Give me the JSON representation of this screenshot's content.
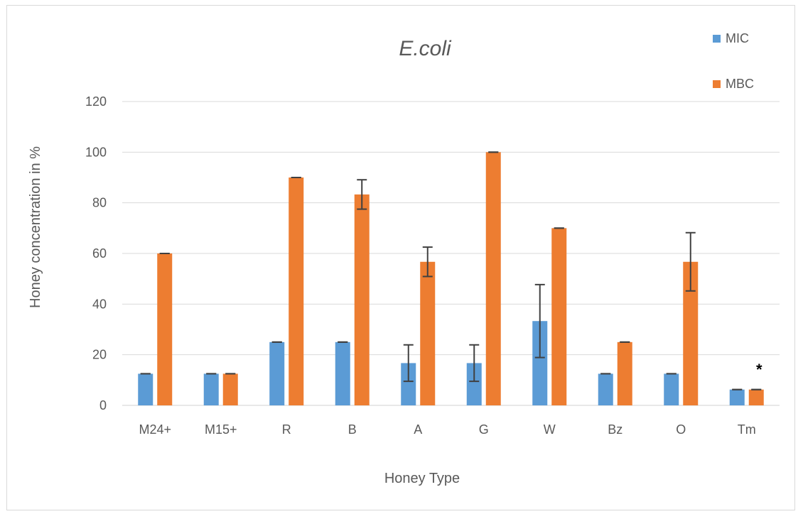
{
  "chart_data": {
    "type": "bar",
    "title": "E.coli",
    "xlabel": "Honey Type",
    "ylabel": "Honey concentration in %",
    "ylim": [
      0,
      120
    ],
    "yticks": [
      0,
      20,
      40,
      60,
      80,
      100,
      120
    ],
    "grid": true,
    "legend_position": "top-right",
    "categories": [
      "M24+",
      "M15+",
      "R",
      "B",
      "A",
      "G",
      "W",
      "Bz",
      "O",
      "Tm"
    ],
    "series": [
      {
        "name": "MIC",
        "color": "#5b9bd5",
        "values": [
          12.5,
          12.5,
          25,
          25,
          16.7,
          16.7,
          33.3,
          12.5,
          12.5,
          6.25
        ],
        "errors": [
          0,
          0,
          0,
          0,
          7.2,
          7.2,
          14.4,
          0,
          0,
          0
        ]
      },
      {
        "name": "MBC",
        "color": "#ed7d31",
        "values": [
          60,
          12.5,
          90,
          83.3,
          56.7,
          100,
          70,
          25,
          56.7,
          6.25
        ],
        "errors": [
          0,
          0,
          0,
          5.8,
          5.8,
          0,
          0,
          0,
          11.5,
          0
        ]
      }
    ],
    "annotations": [
      {
        "category": "Tm",
        "text": "*"
      }
    ]
  }
}
